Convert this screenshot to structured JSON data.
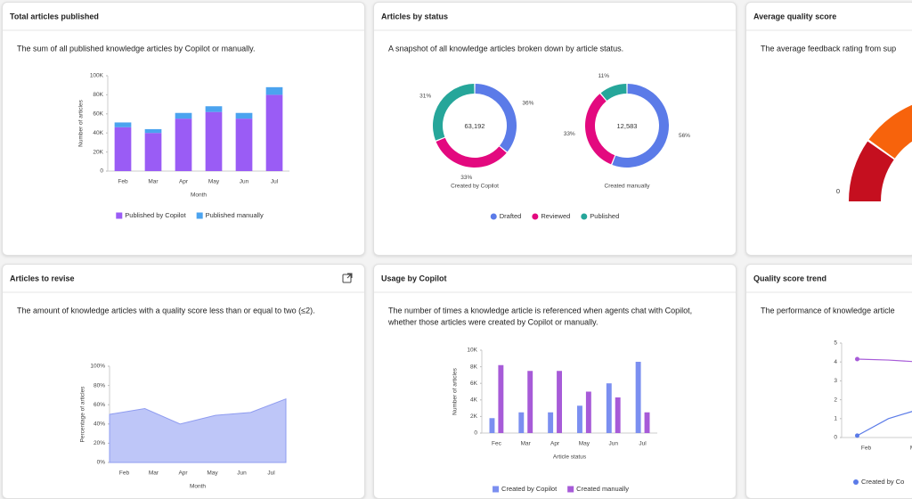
{
  "cards": [
    {
      "title": "Total articles published",
      "description": [
        "The sum of all published knowledge articles by Copilot or manually."
      ]
    },
    {
      "title": "Articles by status",
      "description": [
        "A snapshot of all knowledge articles broken down by article status."
      ]
    },
    {
      "title": "Average quality score",
      "description": [
        "The average feedback rating from sup"
      ]
    },
    {
      "title": "Articles to revise",
      "description": [
        "The amount of knowledge articles with a quality score less than or equal to two (≤2)."
      ]
    },
    {
      "title": "Usage by Copilot",
      "description": [
        "The number of times a knowledge article is referenced when agents chat with Copilot,",
        "whether those articles were created by Copilot or manually."
      ]
    },
    {
      "title": "Quality score trend",
      "description": [
        "The performance of knowledge article"
      ]
    }
  ],
  "chart_data": [
    {
      "type": "bar",
      "stacked": true,
      "categories": [
        "Feb",
        "Mar",
        "Apr",
        "May",
        "Jun",
        "Jul"
      ],
      "series": [
        {
          "name": "Published by Copilot",
          "color": "#9a5cf5",
          "values": [
            46000,
            40000,
            55000,
            62000,
            55000,
            80000
          ]
        },
        {
          "name": "Published manually",
          "color": "#4ba3ef",
          "values": [
            5000,
            4000,
            6000,
            6000,
            6000,
            8000
          ]
        }
      ],
      "ylim": [
        0,
        100000
      ],
      "yticks": [
        0,
        {
          "value": 20000,
          "label": "20K"
        },
        {
          "value": 40000,
          "label": "40K"
        },
        {
          "value": 60000,
          "label": "60K"
        },
        {
          "value": 80000,
          "label": "80K"
        },
        {
          "value": 100000,
          "label": "100K"
        }
      ],
      "y_label": "Number of articles",
      "x_label": "Month",
      "legend": "bottom"
    },
    {
      "type": "donut",
      "categories": [
        "Drafted",
        "Reviewed",
        "Published"
      ],
      "colors": [
        "#5b7be8",
        "#e3097f",
        "#26a69a"
      ],
      "legend": "bottom",
      "pies": [
        {
          "label": "Created by Copilot",
          "center": "63,192",
          "values": [
            36,
            33,
            31
          ],
          "value_labels": [
            "36%",
            "33%",
            "31%"
          ]
        },
        {
          "label": "Created manually",
          "center": "12,583",
          "values": [
            56,
            33,
            11
          ],
          "value_labels": [
            "56%",
            "33%",
            "11%"
          ]
        }
      ]
    },
    {
      "type": "gauge",
      "ticks": [
        0
      ],
      "colors": [
        "#c50f1f",
        "#f7630c"
      ]
    },
    {
      "type": "area",
      "categories": [
        "Feb",
        "Mar",
        "Apr",
        "May",
        "Jun",
        "Jul"
      ],
      "values": [
        50,
        56,
        40,
        49,
        52,
        66
      ],
      "color": "#a8b3f5",
      "ylim": [
        0,
        100
      ],
      "yticks": [
        {
          "value": 0,
          "label": "0%"
        },
        {
          "value": 20,
          "label": "20%"
        },
        {
          "value": 40,
          "label": "40%"
        },
        {
          "value": 60,
          "label": "60%"
        },
        {
          "value": 80,
          "label": "80%"
        },
        {
          "value": 100,
          "label": "100%"
        }
      ],
      "y_label": "Percentage of articles",
      "x_label": "Month"
    },
    {
      "type": "bar",
      "stacked": false,
      "categories": [
        "Fec",
        "Mar",
        "Apr",
        "May",
        "Jun",
        "Jul"
      ],
      "series": [
        {
          "name": "Created by Copilot",
          "color": "#7b8ff0",
          "values": [
            1800,
            2500,
            2500,
            3300,
            6000,
            8600
          ]
        },
        {
          "name": "Created manually",
          "color": "#a75bd8",
          "values": [
            8200,
            7500,
            7500,
            5000,
            4300,
            2500
          ]
        }
      ],
      "ylim": [
        0,
        10000
      ],
      "yticks": [
        0,
        {
          "value": 2000,
          "label": "2K"
        },
        {
          "value": 4000,
          "label": "4K"
        },
        {
          "value": 6000,
          "label": "6K"
        },
        {
          "value": 8000,
          "label": "8K"
        },
        {
          "value": 10000,
          "label": "10K"
        }
      ],
      "y_label": "Number of articles",
      "x_label": "Article status",
      "legend": "bottom"
    },
    {
      "type": "line",
      "categories": [
        "Feb",
        "Mar",
        null
      ],
      "series": [
        {
          "name": "Created by Co",
          "color": "#5b7be8",
          "values": [
            0.1,
            1.0,
            1.5
          ]
        },
        {
          "color": "#a75bd8",
          "values": [
            4.15,
            4.1,
            4.0
          ]
        }
      ],
      "ylim": [
        0,
        5
      ],
      "yticks": [
        0,
        1,
        2,
        3,
        4,
        5
      ],
      "legend": "bottom"
    }
  ]
}
